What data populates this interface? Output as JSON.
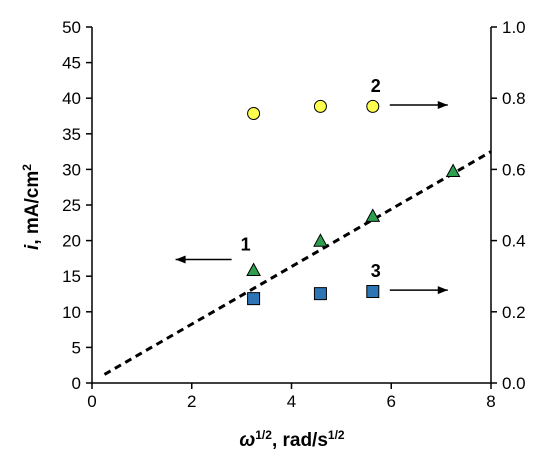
{
  "chart_data": {
    "type": "scatter",
    "xlabel": {
      "base": "ω",
      "sup1": "1/2",
      "mid": ", rad/s",
      "sup2": "1/2"
    },
    "ylabel": {
      "italic": "i",
      "rest": ", mA/cm",
      "sup": "2"
    },
    "x_ticks": [
      "0",
      "2",
      "4",
      "6",
      "8"
    ],
    "y_left_ticks": [
      "0",
      "5",
      "10",
      "15",
      "20",
      "25",
      "30",
      "35",
      "40",
      "45",
      "50"
    ],
    "y_right_ticks": [
      "0.0",
      "0.2",
      "0.4",
      "0.6",
      "0.8",
      "1.0"
    ],
    "xlim": [
      0,
      8
    ],
    "ylim_left": [
      0,
      50
    ],
    "ylim_right": [
      0,
      1.0
    ],
    "grid": false,
    "series": [
      {
        "label": "1",
        "axis": "left",
        "marker": "triangle",
        "color": "#2e9e4f",
        "x": [
          3.24,
          4.58,
          5.63,
          7.24
        ],
        "y": [
          15.8,
          19.9,
          23.4,
          29.7
        ]
      },
      {
        "label": "2",
        "axis": "right",
        "marker": "circle",
        "color": "#ffff4d",
        "x": [
          3.24,
          4.58,
          5.63
        ],
        "y": [
          0.757,
          0.777,
          0.777
        ]
      },
      {
        "label": "3",
        "axis": "right",
        "marker": "square",
        "color": "#2e75b6",
        "x": [
          3.24,
          4.58,
          5.63
        ],
        "y": [
          0.237,
          0.251,
          0.257
        ]
      }
    ],
    "trendline": {
      "series": "1",
      "style": "dashed",
      "x": [
        0.25,
        8.0
      ],
      "y": [
        1.2,
        32.5
      ]
    },
    "annotations": [
      {
        "text": "1",
        "arrow": "left",
        "anchor_x": 3.24,
        "anchor_y": 15.8
      },
      {
        "text": "2",
        "arrow": "right",
        "anchor_x": 5.63,
        "anchor_y": 38.9
      },
      {
        "text": "3",
        "arrow": "right",
        "anchor_x": 5.63,
        "anchor_y": 12.9
      }
    ]
  }
}
